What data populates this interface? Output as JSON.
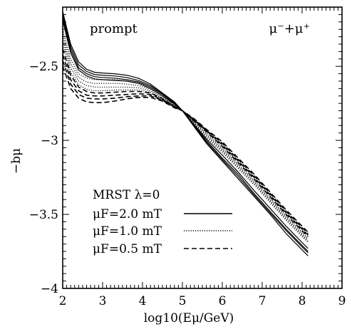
{
  "chart_data": {
    "type": "line",
    "xlabel": "log10(Eμ/GeV)",
    "ylabel": "−bμ",
    "xlim": [
      2,
      9
    ],
    "ylim": [
      -4,
      -2.1
    ],
    "x_ticks": [
      2,
      3,
      4,
      5,
      6,
      7,
      8,
      9
    ],
    "y_ticks": [
      -2.5,
      -3,
      -3.5,
      -4
    ],
    "x_tick_labels": [
      "2",
      "3",
      "4",
      "5",
      "6",
      "7",
      "8",
      "9"
    ],
    "y_tick_labels": [
      "−2.5",
      "−3",
      "−3.5",
      "−4"
    ],
    "grid": false,
    "annotations": {
      "top_left": "prompt",
      "top_right": "μ⁻+μ⁺"
    },
    "legend": {
      "placement": "bottom-left",
      "header": "MRST  λ=0",
      "entries": [
        {
          "label": "μF=2.0  mT",
          "style": "solid"
        },
        {
          "label": "μF=1.0  mT",
          "style": "dotted"
        },
        {
          "label": "μF=0.5  mT",
          "style": "dashed"
        }
      ]
    },
    "groups": [
      {
        "style": "solid",
        "curves": [
          {
            "x": [
              2,
              2.2,
              2.4,
              2.6,
              2.8,
              3.0,
              3.3,
              3.6,
              3.9,
              4.2,
              4.5,
              4.8,
              5.0,
              5.3,
              5.6,
              6.0,
              6.4,
              6.8,
              7.2,
              7.6,
              8.0,
              8.15
            ],
            "y": [
              -2.13,
              -2.35,
              -2.47,
              -2.52,
              -2.54,
              -2.545,
              -2.55,
              -2.56,
              -2.58,
              -2.62,
              -2.68,
              -2.74,
              -2.8,
              -2.91,
              -3.02,
              -3.14,
              -3.26,
              -3.38,
              -3.5,
              -3.63,
              -3.74,
              -3.78
            ]
          },
          {
            "x": [
              2,
              2.2,
              2.4,
              2.6,
              2.8,
              3.0,
              3.3,
              3.6,
              3.9,
              4.2,
              4.5,
              4.8,
              5.0,
              5.3,
              5.6,
              6.0,
              6.4,
              6.8,
              7.2,
              7.6,
              8.0,
              8.15
            ],
            "y": [
              -2.15,
              -2.37,
              -2.49,
              -2.535,
              -2.555,
              -2.56,
              -2.565,
              -2.575,
              -2.595,
              -2.63,
              -2.685,
              -2.745,
              -2.8,
              -2.905,
              -3.01,
              -3.13,
              -3.245,
              -3.37,
              -3.49,
              -3.61,
              -3.72,
              -3.76
            ]
          },
          {
            "x": [
              2,
              2.2,
              2.4,
              2.6,
              2.8,
              3.0,
              3.3,
              3.6,
              3.9,
              4.2,
              4.5,
              4.8,
              5.0,
              5.3,
              5.6,
              6.0,
              6.4,
              6.8,
              7.2,
              7.6,
              8.0,
              8.15
            ],
            "y": [
              -2.17,
              -2.39,
              -2.51,
              -2.55,
              -2.57,
              -2.575,
              -2.58,
              -2.59,
              -2.605,
              -2.64,
              -2.69,
              -2.75,
              -2.8,
              -2.9,
              -3.0,
              -3.12,
              -3.23,
              -3.36,
              -3.48,
              -3.6,
              -3.71,
              -3.75
            ]
          },
          {
            "x": [
              2,
              2.2,
              2.4,
              2.6,
              2.8,
              3.0,
              3.3,
              3.6,
              3.9,
              4.2,
              4.5,
              4.8,
              5.0,
              5.3,
              5.6,
              6.0,
              6.4,
              6.8,
              7.2,
              7.6,
              8.0,
              8.15
            ],
            "y": [
              -2.19,
              -2.41,
              -2.525,
              -2.565,
              -2.585,
              -2.59,
              -2.595,
              -2.6,
              -2.615,
              -2.65,
              -2.7,
              -2.755,
              -2.8,
              -2.895,
              -2.99,
              -3.1,
              -3.215,
              -3.34,
              -3.46,
              -3.58,
              -3.69,
              -3.73
            ]
          }
        ]
      },
      {
        "style": "dotted",
        "curves": [
          {
            "x": [
              2,
              2.2,
              2.4,
              2.6,
              2.8,
              3.0,
              3.3,
              3.6,
              3.9,
              4.2,
              4.5,
              4.8,
              5.0,
              5.3,
              5.6,
              6.0,
              6.4,
              6.8,
              7.2,
              7.6,
              8.0,
              8.15
            ],
            "y": [
              -2.25,
              -2.45,
              -2.55,
              -2.58,
              -2.59,
              -2.59,
              -2.59,
              -2.6,
              -2.61,
              -2.64,
              -2.69,
              -2.75,
              -2.8,
              -2.89,
              -2.98,
              -3.08,
              -3.19,
              -3.3,
              -3.42,
              -3.54,
              -3.65,
              -3.69
            ]
          },
          {
            "x": [
              2,
              2.2,
              2.4,
              2.6,
              2.8,
              3.0,
              3.3,
              3.6,
              3.9,
              4.2,
              4.5,
              4.8,
              5.0,
              5.3,
              5.6,
              6.0,
              6.4,
              6.8,
              7.2,
              7.6,
              8.0,
              8.15
            ],
            "y": [
              -2.28,
              -2.48,
              -2.575,
              -2.605,
              -2.615,
              -2.615,
              -2.615,
              -2.62,
              -2.63,
              -2.655,
              -2.7,
              -2.755,
              -2.8,
              -2.885,
              -2.97,
              -3.07,
              -3.18,
              -3.29,
              -3.41,
              -3.53,
              -3.64,
              -3.68
            ]
          },
          {
            "x": [
              2,
              2.2,
              2.4,
              2.6,
              2.8,
              3.0,
              3.3,
              3.6,
              3.9,
              4.2,
              4.5,
              4.8,
              5.0,
              5.3,
              5.6,
              6.0,
              6.4,
              6.8,
              7.2,
              7.6,
              8.0,
              8.15
            ],
            "y": [
              -2.31,
              -2.51,
              -2.6,
              -2.63,
              -2.64,
              -2.64,
              -2.64,
              -2.64,
              -2.645,
              -2.665,
              -2.71,
              -2.76,
              -2.8,
              -2.88,
              -2.96,
              -3.06,
              -3.17,
              -3.28,
              -3.4,
              -3.52,
              -3.63,
              -3.67
            ]
          },
          {
            "x": [
              2,
              2.2,
              2.4,
              2.6,
              2.8,
              3.0,
              3.3,
              3.6,
              3.9,
              4.2,
              4.5,
              4.8,
              5.0,
              5.3,
              5.6,
              6.0,
              6.4,
              6.8,
              7.2,
              7.6,
              8.0,
              8.15
            ],
            "y": [
              -2.34,
              -2.54,
              -2.625,
              -2.655,
              -2.665,
              -2.665,
              -2.66,
              -2.66,
              -2.66,
              -2.675,
              -2.715,
              -2.765,
              -2.8,
              -2.875,
              -2.95,
              -3.05,
              -3.16,
              -3.27,
              -3.39,
              -3.51,
              -3.62,
              -3.66
            ]
          }
        ]
      },
      {
        "style": "dashed",
        "curves": [
          {
            "x": [
              2,
              2.2,
              2.4,
              2.6,
              2.8,
              3.0,
              3.3,
              3.6,
              3.9,
              4.2,
              4.5,
              4.8,
              5.0,
              5.3,
              5.6,
              6.0,
              6.4,
              6.8,
              7.2,
              7.6,
              8.0,
              8.15
            ],
            "y": [
              -2.38,
              -2.56,
              -2.64,
              -2.67,
              -2.68,
              -2.68,
              -2.675,
              -2.67,
              -2.67,
              -2.68,
              -2.72,
              -2.77,
              -2.8,
              -2.87,
              -2.94,
              -3.04,
              -3.15,
              -3.26,
              -3.38,
              -3.5,
              -3.61,
              -3.65
            ]
          },
          {
            "x": [
              2,
              2.2,
              2.4,
              2.6,
              2.8,
              3.0,
              3.3,
              3.6,
              3.9,
              4.2,
              4.5,
              4.8,
              5.0,
              5.3,
              5.6,
              6.0,
              6.4,
              6.8,
              7.2,
              7.6,
              8.0,
              8.15
            ],
            "y": [
              -2.42,
              -2.59,
              -2.665,
              -2.695,
              -2.7,
              -2.7,
              -2.695,
              -2.69,
              -2.685,
              -2.69,
              -2.725,
              -2.77,
              -2.8,
              -2.865,
              -2.935,
              -3.03,
              -3.14,
              -3.25,
              -3.37,
              -3.49,
              -3.6,
              -3.64
            ]
          },
          {
            "x": [
              2,
              2.2,
              2.4,
              2.6,
              2.8,
              3.0,
              3.3,
              3.6,
              3.9,
              4.2,
              4.5,
              4.8,
              5.0,
              5.3,
              5.6,
              6.0,
              6.4,
              6.8,
              7.2,
              7.6,
              8.0,
              8.15
            ],
            "y": [
              -2.46,
              -2.62,
              -2.69,
              -2.715,
              -2.72,
              -2.72,
              -2.715,
              -2.705,
              -2.7,
              -2.7,
              -2.73,
              -2.775,
              -2.8,
              -2.86,
              -2.93,
              -3.02,
              -3.13,
              -3.24,
              -3.36,
              -3.48,
              -3.59,
              -3.63
            ]
          },
          {
            "x": [
              2,
              2.2,
              2.4,
              2.6,
              2.8,
              3.0,
              3.3,
              3.6,
              3.9,
              4.2,
              4.5,
              4.8,
              5.0,
              5.3,
              5.6,
              6.0,
              6.4,
              6.8,
              7.2,
              7.6,
              8.0,
              8.15
            ],
            "y": [
              -2.5,
              -2.65,
              -2.715,
              -2.74,
              -2.745,
              -2.745,
              -2.735,
              -2.72,
              -2.71,
              -2.71,
              -2.735,
              -2.78,
              -2.8,
              -2.855,
              -2.925,
              -3.01,
              -3.12,
              -3.23,
              -3.35,
              -3.47,
              -3.58,
              -3.62
            ]
          }
        ]
      }
    ]
  }
}
